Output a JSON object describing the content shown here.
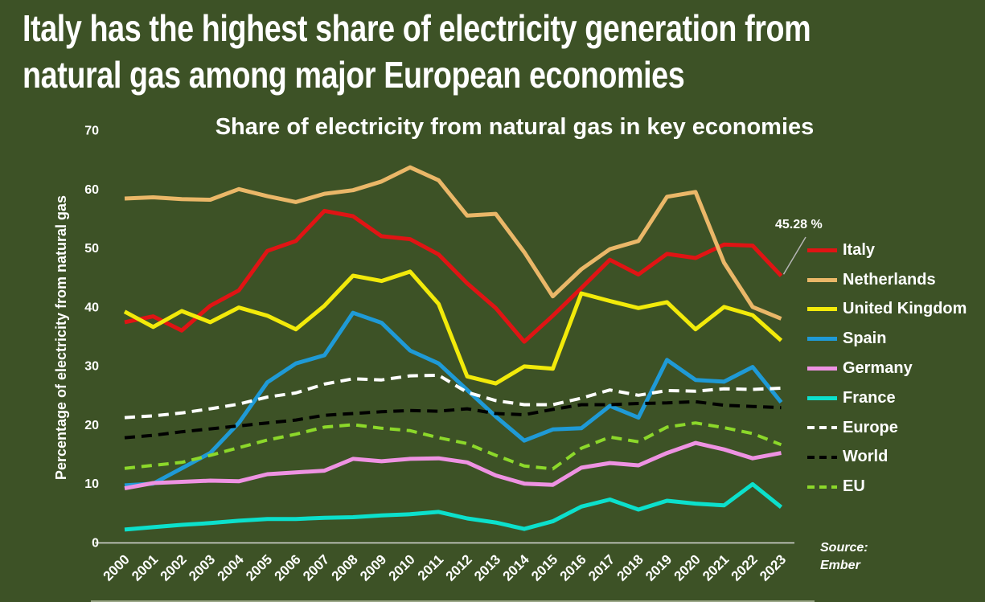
{
  "page": {
    "background": "#3d5226",
    "title_line1": "Italy has the highest share of electricity generation from",
    "title_line2": "natural gas among major European economies",
    "annotation": {
      "text": "45.28 %",
      "series": "Italy",
      "year": 2023,
      "value": 45.28
    },
    "source_label": "Source:",
    "source_name": "Ember"
  },
  "chart_data": {
    "type": "line",
    "title": "Share of electricity from natural gas in key economies",
    "xlabel": "",
    "ylabel": "Percentage of electricity from natural gas",
    "ylim": [
      0,
      70
    ],
    "yticks": [
      0,
      10,
      20,
      30,
      40,
      50,
      60,
      70
    ],
    "grid": false,
    "legend_position": "right",
    "axis_color": "#d9d9d9",
    "annotation_line_color": "#b5b5b5",
    "x": [
      2000,
      2001,
      2002,
      2003,
      2004,
      2005,
      2006,
      2007,
      2008,
      2009,
      2010,
      2011,
      2012,
      2013,
      2014,
      2015,
      2016,
      2017,
      2018,
      2019,
      2020,
      2021,
      2022,
      2023
    ],
    "series": [
      {
        "name": "Italy",
        "color": "#e01414",
        "style": "solid",
        "values": [
          37.4,
          38.4,
          36.0,
          40.2,
          42.8,
          49.5,
          51.2,
          56.3,
          55.4,
          52.0,
          51.5,
          48.9,
          44.0,
          39.8,
          34.1,
          38.5,
          43.2,
          48.0,
          45.5,
          49.0,
          48.3,
          50.6,
          50.4,
          45.28
        ]
      },
      {
        "name": "Netherlands",
        "color": "#eab768",
        "style": "solid",
        "values": [
          58.4,
          58.6,
          58.3,
          58.2,
          60.0,
          58.8,
          57.8,
          59.2,
          59.8,
          61.3,
          63.7,
          61.5,
          55.5,
          55.8,
          49.3,
          41.8,
          46.4,
          49.8,
          51.2,
          58.7,
          59.5,
          47.5,
          40.0,
          38.0
        ]
      },
      {
        "name": "United Kingdom",
        "color": "#f2ea0a",
        "style": "solid",
        "values": [
          39.2,
          36.6,
          39.3,
          37.4,
          39.9,
          38.5,
          36.2,
          40.2,
          45.3,
          44.4,
          46.0,
          40.5,
          28.2,
          27.0,
          29.9,
          29.5,
          42.3,
          41.0,
          39.8,
          40.8,
          36.2,
          40.0,
          38.6,
          34.3
        ]
      },
      {
        "name": "Spain",
        "color": "#1f9ad6",
        "style": "solid",
        "values": [
          9.7,
          10.0,
          12.6,
          15.2,
          20.3,
          27.2,
          30.4,
          31.8,
          39.0,
          37.3,
          32.6,
          30.4,
          25.9,
          21.4,
          17.3,
          19.2,
          19.4,
          23.2,
          21.2,
          31.0,
          27.6,
          27.3,
          29.8,
          23.8
        ]
      },
      {
        "name": "Germany",
        "color": "#ee92e2",
        "style": "solid",
        "values": [
          9.2,
          10.1,
          10.3,
          10.5,
          10.4,
          11.6,
          11.9,
          12.2,
          14.2,
          13.8,
          14.2,
          14.3,
          13.6,
          11.4,
          10.0,
          9.8,
          12.7,
          13.5,
          13.1,
          15.2,
          16.9,
          15.8,
          14.3,
          15.2
        ]
      },
      {
        "name": "France",
        "color": "#0ce0cc",
        "style": "solid",
        "values": [
          2.2,
          2.6,
          3.0,
          3.3,
          3.7,
          4.0,
          4.0,
          4.2,
          4.3,
          4.6,
          4.8,
          5.2,
          4.1,
          3.4,
          2.3,
          3.6,
          6.1,
          7.3,
          5.6,
          7.1,
          6.6,
          6.3,
          9.9,
          6.0
        ]
      },
      {
        "name": "Europe",
        "color": "#ffffff",
        "style": "dashed",
        "values": [
          21.2,
          21.5,
          22.0,
          22.7,
          23.5,
          24.7,
          25.4,
          26.9,
          27.8,
          27.6,
          28.3,
          28.4,
          25.5,
          24.1,
          23.4,
          23.4,
          24.5,
          25.9,
          25.0,
          25.8,
          25.7,
          26.1,
          26.0,
          26.2
        ]
      },
      {
        "name": "World",
        "color": "#000000",
        "style": "dashed",
        "values": [
          17.8,
          18.2,
          18.8,
          19.3,
          19.8,
          20.3,
          20.8,
          21.6,
          21.9,
          22.2,
          22.4,
          22.3,
          22.7,
          21.9,
          21.7,
          22.6,
          23.4,
          23.4,
          23.6,
          23.7,
          23.9,
          23.3,
          23.1,
          22.9
        ]
      },
      {
        "name": "EU",
        "color": "#8cd82a",
        "style": "dashed",
        "values": [
          12.6,
          13.1,
          13.6,
          14.8,
          16.1,
          17.4,
          18.4,
          19.6,
          20.0,
          19.4,
          19.0,
          17.8,
          16.8,
          14.8,
          13.0,
          12.5,
          16.0,
          17.9,
          17.1,
          19.6,
          20.3,
          19.5,
          18.5,
          16.6
        ]
      }
    ]
  }
}
